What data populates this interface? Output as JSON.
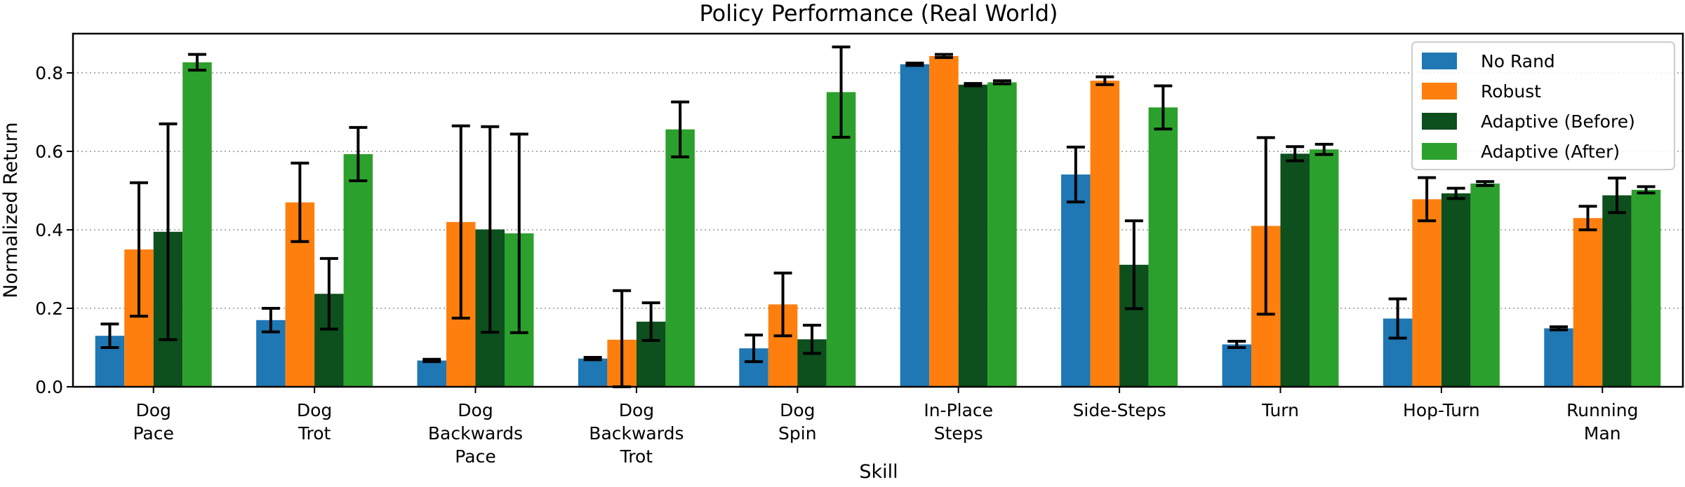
{
  "chart_data": {
    "type": "bar",
    "title": "Policy Performance (Real World)",
    "xlabel": "Skill",
    "ylabel": "Normalized Return",
    "ylim": [
      0,
      0.9
    ],
    "yticks": [
      "0.0",
      "0.2",
      "0.4",
      "0.6",
      "0.8"
    ],
    "ytick_values": [
      0,
      0.2,
      0.4,
      0.6,
      0.8
    ],
    "grid": "horizontal dotted",
    "legend_position": "top-right",
    "categories": [
      [
        "Dog",
        "Pace"
      ],
      [
        "Dog",
        "Trot"
      ],
      [
        "Dog",
        "Backwards",
        "Pace"
      ],
      [
        "Dog",
        "Backwards",
        "Trot"
      ],
      [
        "Dog",
        "Spin"
      ],
      [
        "In-Place",
        "Steps"
      ],
      [
        "Side-Steps"
      ],
      [
        "Turn"
      ],
      [
        "Hop-Turn"
      ],
      [
        "Running",
        "Man"
      ]
    ],
    "series": [
      {
        "name": "No Rand",
        "color": "#1f77b4",
        "values": [
          0.13,
          0.17,
          0.067,
          0.072,
          0.098,
          0.822,
          0.541,
          0.108,
          0.174,
          0.149
        ],
        "errors": [
          0.03,
          0.03,
          0.003,
          0.003,
          0.034,
          0.003,
          0.07,
          0.008,
          0.05,
          0.004
        ]
      },
      {
        "name": "Robust",
        "color": "#ff7f0e",
        "values": [
          0.35,
          0.47,
          0.42,
          0.12,
          0.21,
          0.843,
          0.78,
          0.41,
          0.478,
          0.43
        ],
        "errors": [
          0.17,
          0.1,
          0.245,
          0.125,
          0.08,
          0.004,
          0.01,
          0.225,
          0.055,
          0.03
        ]
      },
      {
        "name": "Adaptive (Before)",
        "color": "#0d4f1d",
        "values": [
          0.395,
          0.237,
          0.401,
          0.166,
          0.121,
          0.77,
          0.311,
          0.594,
          0.493,
          0.488
        ],
        "errors": [
          0.275,
          0.09,
          0.262,
          0.048,
          0.036,
          0.003,
          0.112,
          0.018,
          0.013,
          0.044
        ]
      },
      {
        "name": "Adaptive (After)",
        "color": "#2ca02c",
        "values": [
          0.827,
          0.593,
          0.391,
          0.656,
          0.751,
          0.776,
          0.712,
          0.605,
          0.518,
          0.502
        ],
        "errors": [
          0.02,
          0.068,
          0.253,
          0.07,
          0.115,
          0.004,
          0.055,
          0.013,
          0.005,
          0.008
        ]
      }
    ]
  }
}
